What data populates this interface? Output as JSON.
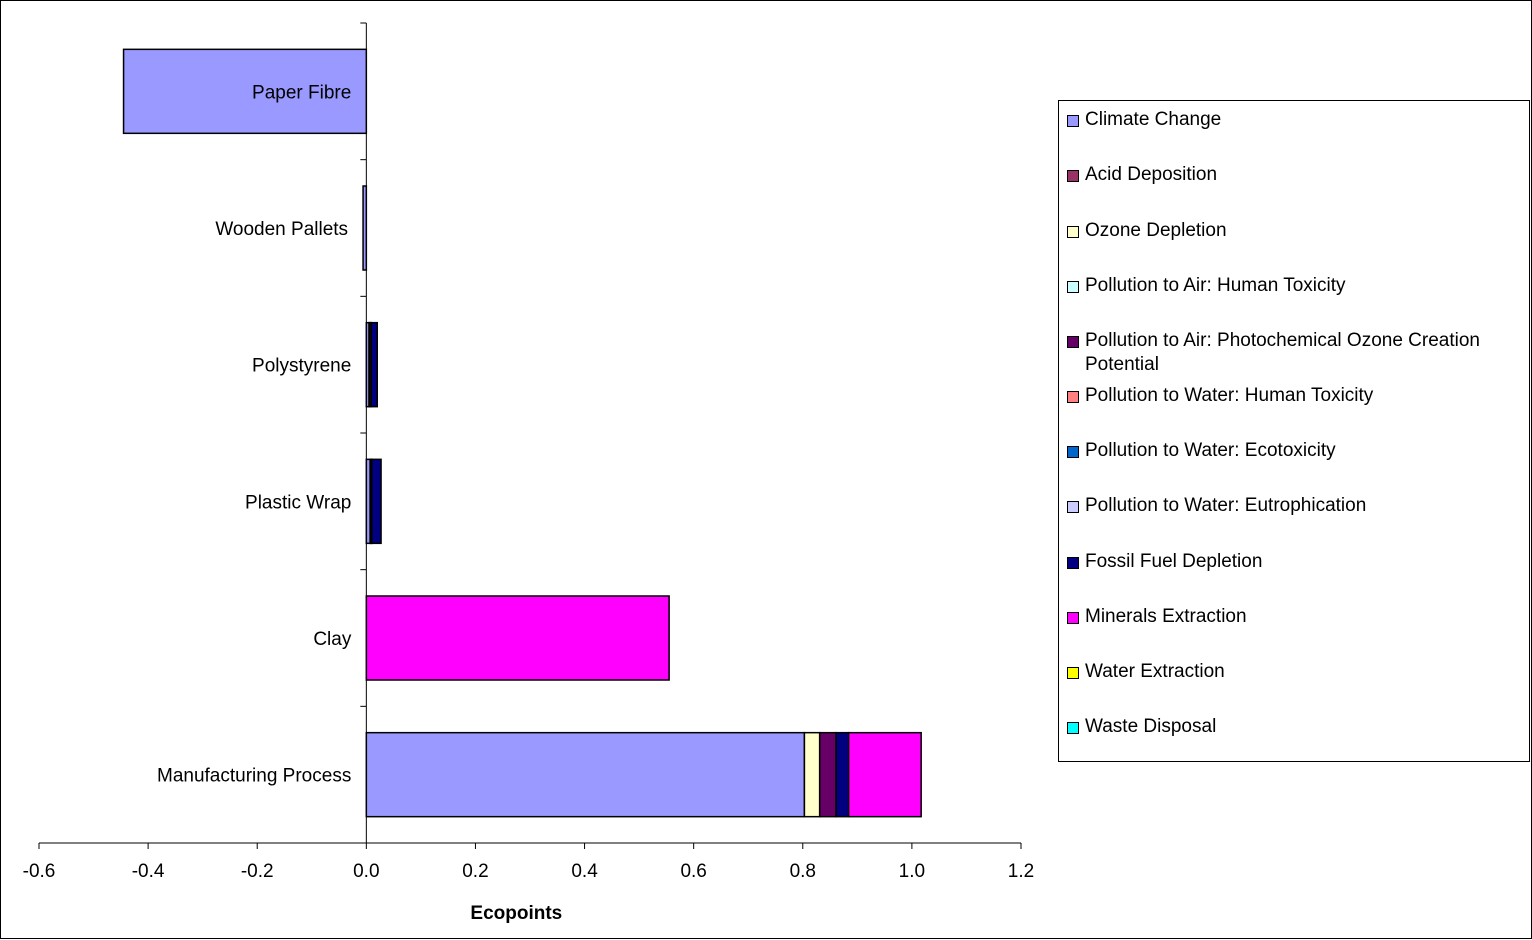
{
  "chart_data": {
    "type": "bar",
    "orientation": "horizontal",
    "stacked": true,
    "title": "",
    "xlabel": "Ecopoints",
    "ylabel": "",
    "xlim": [
      -0.6,
      1.2
    ],
    "x_ticks": [
      -0.6,
      -0.4,
      -0.2,
      0.0,
      0.2,
      0.4,
      0.6,
      0.8,
      1.0,
      1.2
    ],
    "x_tick_labels": [
      "-0.6",
      "-0.4",
      "-0.2",
      "0.0",
      "0.2",
      "0.4",
      "0.6",
      "0.8",
      "1.0",
      "1.2"
    ],
    "categories": [
      "Paper Fibre",
      "Wooden Pallets",
      "Polystyrene",
      "Plastic Wrap",
      "Clay",
      "Manufacturing Process"
    ],
    "grid": false,
    "legend_position": "right",
    "series": [
      {
        "name": "Climate Change",
        "color": "#9999ff",
        "values": [
          -0.445,
          -0.006,
          0.005,
          0.007,
          0.0,
          0.803
        ]
      },
      {
        "name": "Acid Deposition",
        "color": "#993366",
        "values": [
          0.0,
          0.0,
          0.001,
          0.001,
          0.0,
          0.0
        ]
      },
      {
        "name": "Ozone Depletion",
        "color": "#ffffcc",
        "values": [
          0.0,
          0.0,
          0.0,
          0.0,
          0.0,
          0.028
        ]
      },
      {
        "name": "Pollution to Air: Human Toxicity",
        "color": "#ccffff",
        "values": [
          0.0,
          0.0,
          0.0,
          0.0,
          0.0,
          0.0
        ]
      },
      {
        "name": "Pollution to Air: Photochemical Ozone Creation Potential",
        "color": "#660066",
        "values": [
          0.0,
          0.0,
          0.003,
          0.002,
          0.0,
          0.03
        ]
      },
      {
        "name": "Pollution to Water: Human Toxicity",
        "color": "#ff8080",
        "values": [
          0.0,
          0.0,
          0.0,
          0.0,
          0.0,
          0.0
        ]
      },
      {
        "name": "Pollution to Water: Ecotoxicity",
        "color": "#0066cc",
        "values": [
          0.0,
          0.0,
          0.0,
          0.0,
          0.0,
          0.0
        ]
      },
      {
        "name": "Pollution to Water: Eutrophication",
        "color": "#ccccff",
        "values": [
          0.0,
          0.0,
          0.0,
          0.0,
          0.0,
          0.0
        ]
      },
      {
        "name": "Fossil Fuel Depletion",
        "color": "#000080",
        "values": [
          0.0,
          0.0,
          0.011,
          0.017,
          0.0,
          0.023
        ]
      },
      {
        "name": "Minerals Extraction",
        "color": "#ff00ff",
        "values": [
          0.0,
          0.0,
          0.0,
          0.0,
          0.555,
          0.133
        ]
      },
      {
        "name": "Water Extraction",
        "color": "#ffff00",
        "values": [
          0.0,
          0.0,
          0.0,
          0.0,
          0.0,
          0.0
        ]
      },
      {
        "name": "Waste Disposal",
        "color": "#00ffff",
        "values": [
          0.0,
          0.0,
          0.0,
          0.0,
          0.0,
          0.0
        ]
      }
    ]
  }
}
